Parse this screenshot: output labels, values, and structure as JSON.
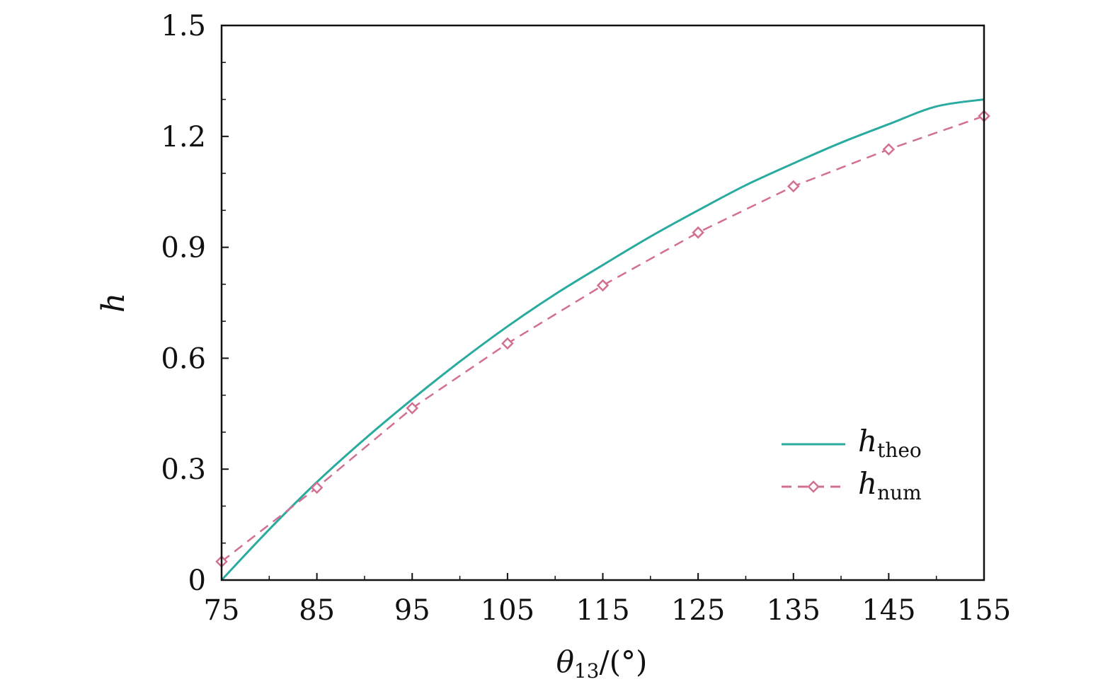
{
  "chart_data": {
    "type": "line",
    "xlabel": {
      "main": "θ",
      "sub": "13",
      "suffix": "/(°)"
    },
    "ylabel": "h",
    "xlim": [
      75,
      155
    ],
    "ylim": [
      0,
      1.5
    ],
    "xticks": [
      75,
      85,
      95,
      105,
      115,
      125,
      135,
      145,
      155
    ],
    "xtick_labels": [
      "75",
      "85",
      "95",
      "105",
      "115",
      "125",
      "135",
      "145",
      "155"
    ],
    "yticks": [
      0,
      0.3,
      0.6,
      0.9,
      1.2,
      1.5
    ],
    "ytick_labels": [
      "0",
      "0.3",
      "0.6",
      "0.9",
      "1.2",
      "1.5"
    ],
    "grid": false,
    "legend_position": "bottom-right",
    "series": [
      {
        "name": "h",
        "name_sub": "theo",
        "style": "solid",
        "color": "#2aab9f",
        "marker": "none",
        "x": [
          75,
          80,
          85,
          90,
          95,
          100,
          105,
          110,
          115,
          120,
          125,
          130,
          135,
          140,
          145,
          150,
          155
        ],
        "y": [
          0.0,
          0.137,
          0.265,
          0.381,
          0.489,
          0.591,
          0.686,
          0.773,
          0.852,
          0.929,
          1.0,
          1.068,
          1.127,
          1.183,
          1.233,
          1.281,
          1.3
        ]
      },
      {
        "name": "h",
        "name_sub": "num",
        "style": "dashed",
        "color": "#d27094",
        "marker": "diamond",
        "x": [
          75,
          85,
          95,
          105,
          115,
          125,
          135,
          145,
          155
        ],
        "y": [
          0.05,
          0.25,
          0.465,
          0.64,
          0.797,
          0.94,
          1.065,
          1.165,
          1.255
        ]
      }
    ]
  }
}
